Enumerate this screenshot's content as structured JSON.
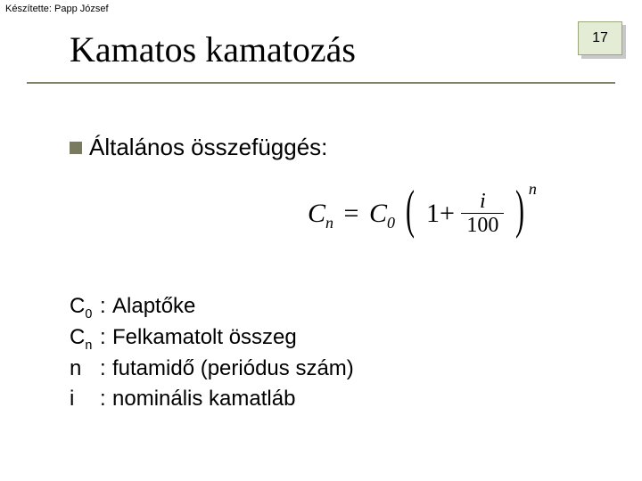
{
  "author_line": "Készítette: Papp József",
  "page_number": "17",
  "title": "Kamatos kamatozás",
  "section_heading": "Általános összefüggés:",
  "formula": {
    "lhs_base": "C",
    "lhs_sub": "n",
    "eq": "=",
    "rhs_coef_base": "C",
    "rhs_coef_sub": "0",
    "one_plus": "1+",
    "frac_num": "i",
    "frac_den": "100",
    "exponent": "n"
  },
  "definitions": [
    {
      "symbol_base": "C",
      "symbol_sub": "0",
      "desc": "Alaptőke"
    },
    {
      "symbol_base": "C",
      "symbol_sub": "n",
      "desc": "Felkamatolt összeg"
    },
    {
      "symbol_base": "n",
      "symbol_sub": "",
      "desc": "futamidő (periódus szám)"
    },
    {
      "symbol_base": "i",
      "symbol_sub": "",
      "desc": "nominális kamatláb"
    }
  ],
  "colors": {
    "badge_bg": "#e5ecd5",
    "badge_border": "#9aa77a",
    "badge_shadow": "#c8c8c8",
    "bullet": "#7a7a60",
    "rule": "#808066"
  }
}
